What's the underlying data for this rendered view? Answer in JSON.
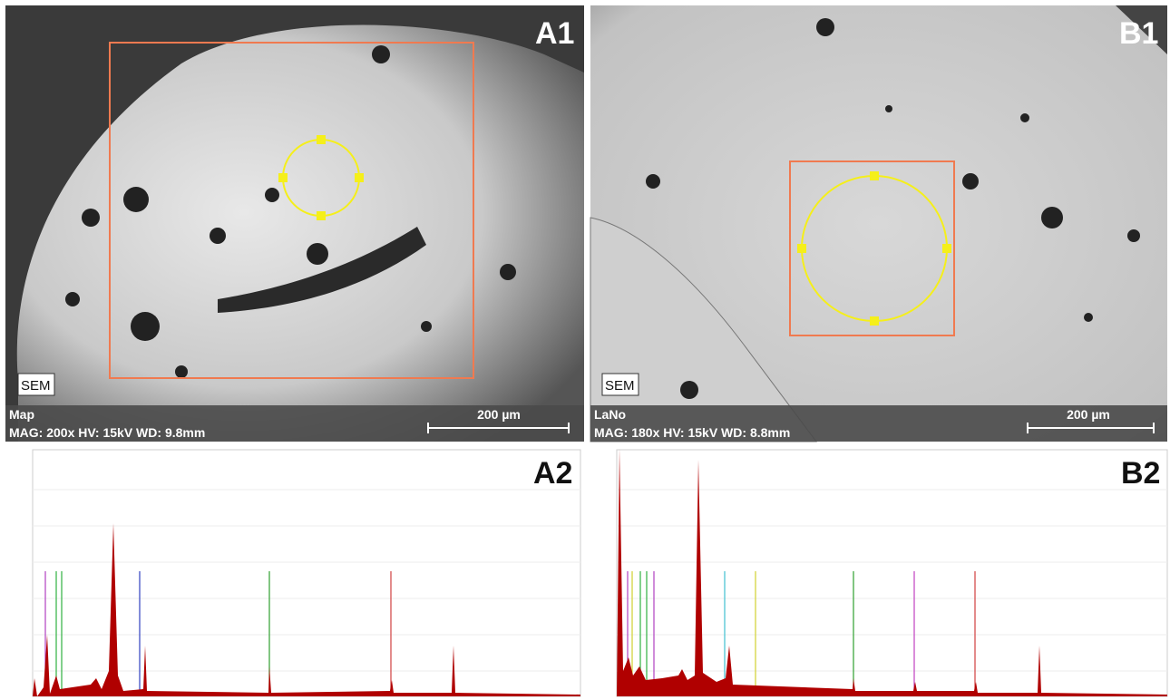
{
  "panels": [
    {
      "label": "A1",
      "badge": "SEM",
      "title": "Map",
      "params": "MAG: 200x  HV: 15kV  WD: 9.8mm",
      "scale": "200 µm"
    },
    {
      "label": "B1",
      "badge": "SEM",
      "title": "LaNo",
      "params": "MAG: 180x  HV: 15kV  WD: 8.8mm",
      "scale": "200 µm"
    }
  ],
  "spectra": [
    {
      "label": "A2"
    },
    {
      "label": "B2"
    }
  ]
}
